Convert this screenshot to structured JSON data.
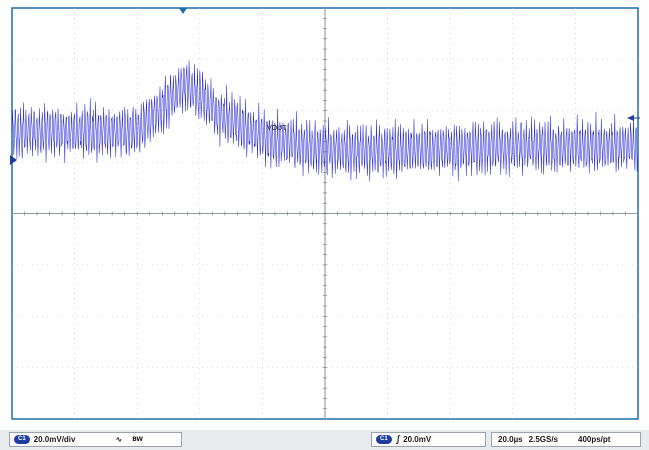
{
  "chart_data": {
    "type": "line",
    "title": "",
    "xlabel": "",
    "ylabel": "",
    "grid": true,
    "divisions": {
      "x": 10,
      "y": 8
    },
    "ylim": [
      -80,
      80
    ],
    "xlim": [
      0,
      200
    ],
    "series": [
      {
        "name": "VOUT",
        "color": "#2b2bd6",
        "center_divisions": [
          [
            0,
            1.6
          ],
          [
            40,
            1.6
          ],
          [
            45,
            1.9
          ],
          [
            50,
            2.2
          ],
          [
            55,
            2.5
          ],
          [
            60,
            2.3
          ],
          [
            65,
            2.0
          ],
          [
            70,
            1.8
          ],
          [
            80,
            1.5
          ],
          [
            90,
            1.35
          ],
          [
            100,
            1.25
          ],
          [
            120,
            1.22
          ],
          [
            140,
            1.25
          ],
          [
            160,
            1.3
          ],
          [
            180,
            1.3
          ],
          [
            200,
            1.32
          ]
        ],
        "ripple_pp_divisions": 1.35
      }
    ],
    "annotations": [
      {
        "text": "VOUT"
      }
    ]
  },
  "markers": {
    "trigger_color": "#1b6fa8",
    "ground_color": "#1f3fa0",
    "level_color": "#1f3fa0"
  },
  "status": {
    "channel_badge": "C1",
    "vdiv": "20.0mV/div",
    "coupling_symbol": "∿",
    "bw_symbol": "BW",
    "trigger_badge": "C1",
    "trigger_slope": "∫",
    "trigger_level": "20.0mV",
    "timebase": "20.0µs",
    "sample_rate": "2.5GS/s",
    "resolution": "400ps/pt"
  },
  "colors": {
    "grid": "#b8bec6",
    "frame": "#1b6fa8",
    "trace": "#2b2bd6"
  }
}
